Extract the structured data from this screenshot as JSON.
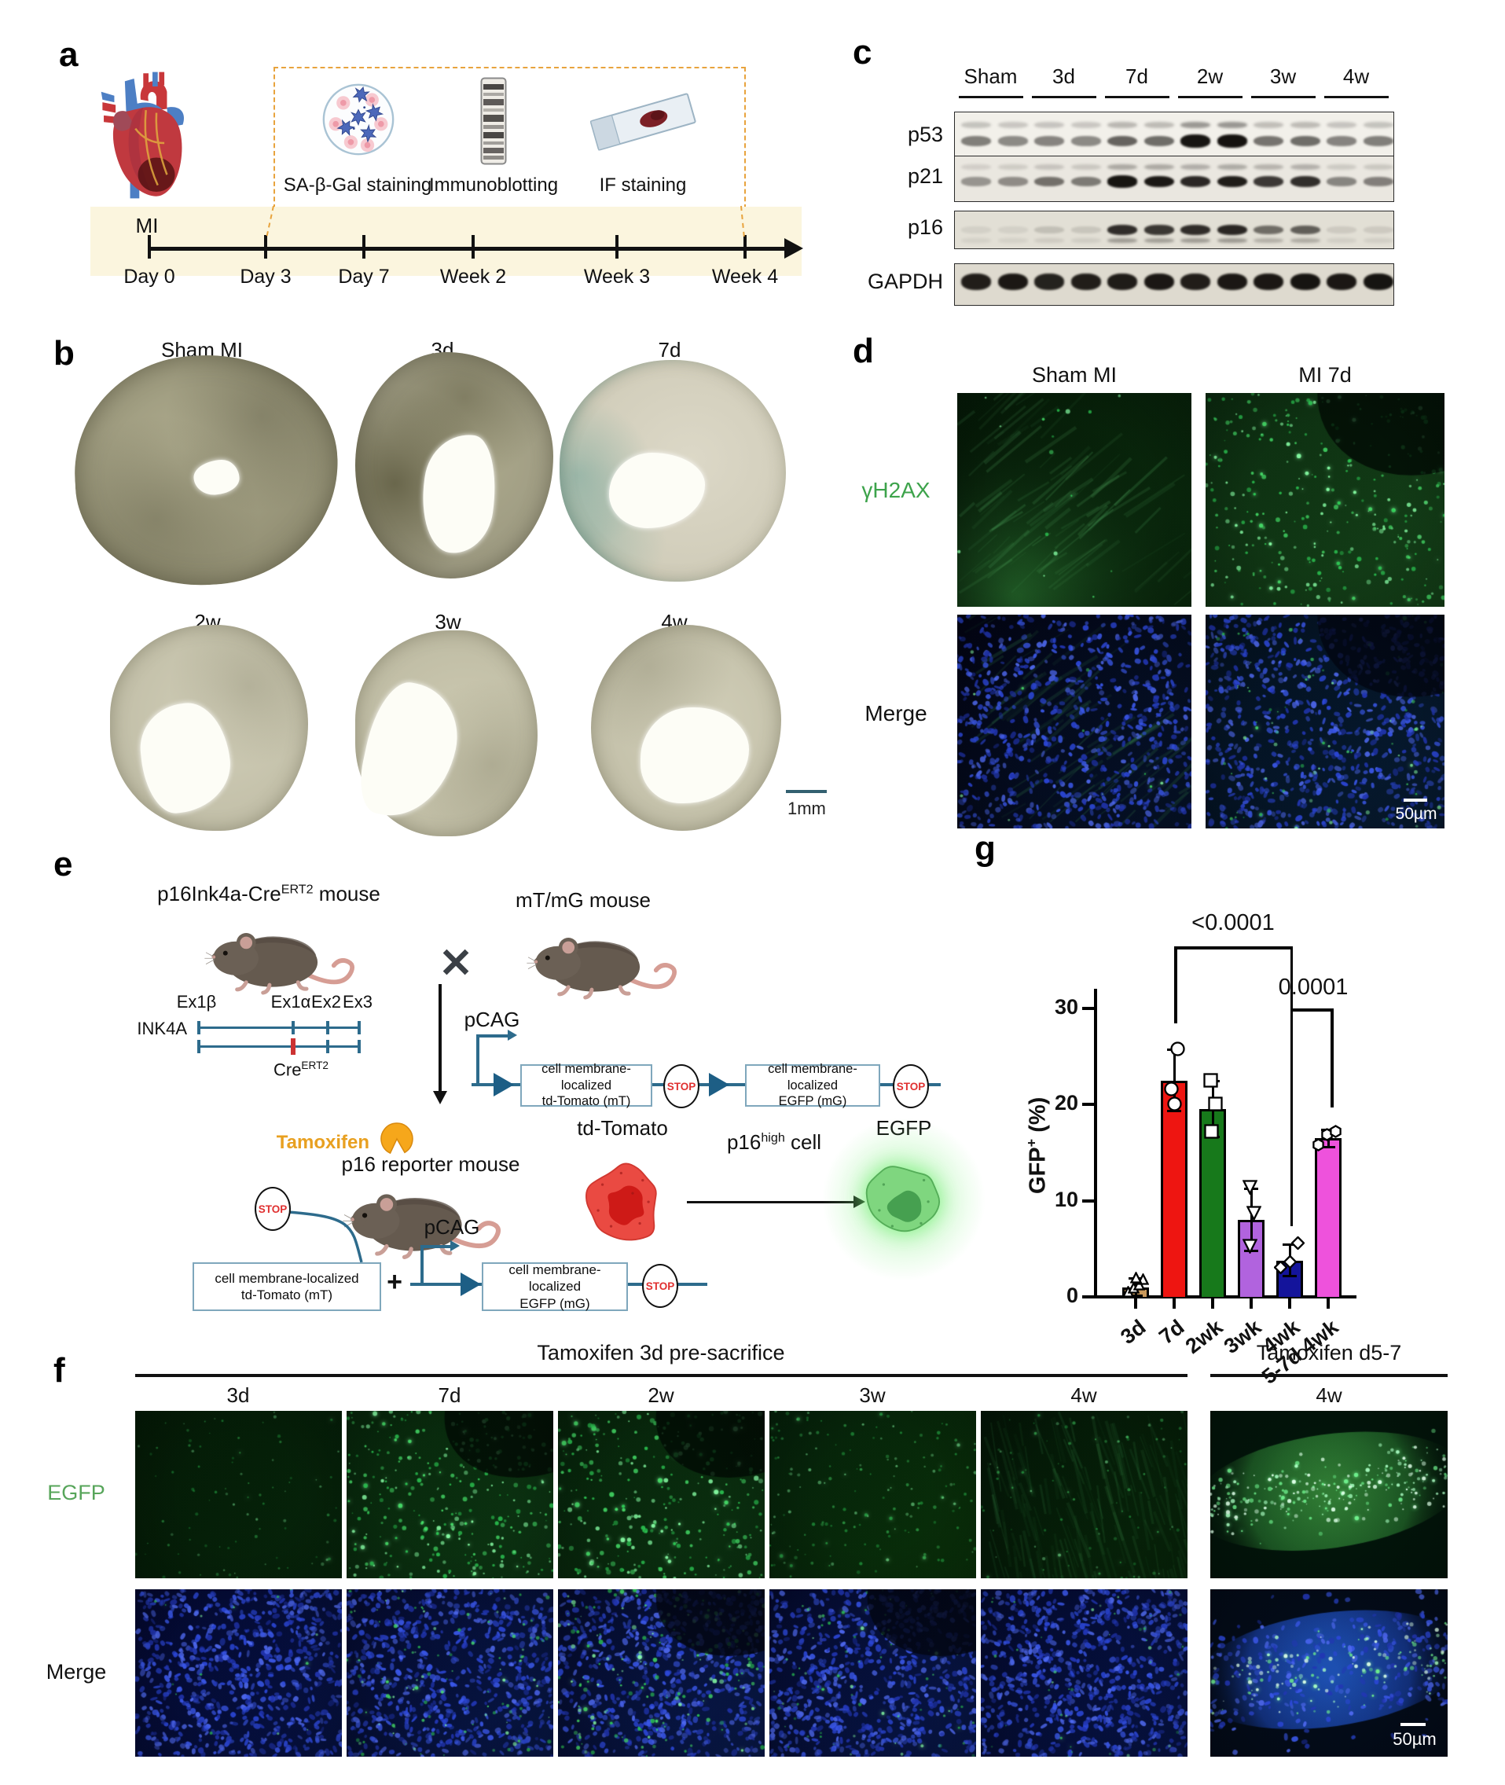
{
  "panels": {
    "a": {
      "letter": "a",
      "mi_label": "MI",
      "timeline_ticks": [
        "Day 0",
        "Day 3",
        "Day 7",
        "Week 2",
        "Week 3",
        "Week 4"
      ],
      "methods": [
        {
          "label": "SA-β-Gal staining",
          "icon": "sa-b-gal-dish-icon"
        },
        {
          "label": "Immunoblotting",
          "icon": "immunoblot-gel-icon"
        },
        {
          "label": "IF staining",
          "icon": "if-slide-icon"
        }
      ]
    },
    "b": {
      "letter": "b",
      "top_labels": [
        "Sham MI",
        "3d",
        "7d"
      ],
      "bottom_labels": [
        "2w",
        "3w",
        "4w"
      ],
      "scale_bar": "1mm"
    },
    "c": {
      "letter": "c",
      "group_labels": [
        "Sham",
        "3d",
        "7d",
        "2w",
        "3w",
        "4w"
      ],
      "rows": [
        {
          "name": "p53",
          "band_intensities": [
            0.5,
            0.45,
            0.48,
            0.45,
            0.62,
            0.58,
            0.97,
            0.98,
            0.55,
            0.58,
            0.48,
            0.5
          ]
        },
        {
          "name": "p21",
          "band_intensities": [
            0.38,
            0.42,
            0.55,
            0.5,
            0.97,
            0.95,
            0.88,
            0.93,
            0.8,
            0.85,
            0.45,
            0.48
          ]
        },
        {
          "name": "p16",
          "band_intensities": [
            0.07,
            0.07,
            0.15,
            0.12,
            0.85,
            0.8,
            0.85,
            0.88,
            0.55,
            0.62,
            0.1,
            0.1
          ]
        },
        {
          "name": "GAPDH",
          "band_intensities": [
            0.92,
            0.95,
            0.9,
            0.92,
            0.93,
            0.95,
            0.92,
            0.95,
            0.95,
            0.97,
            0.95,
            0.97
          ]
        }
      ]
    },
    "d": {
      "letter": "d",
      "col_labels": [
        "Sham MI",
        "MI 7d"
      ],
      "row_labels": [
        {
          "text": "γH2AX",
          "color": "#3DA34B"
        },
        {
          "text": "Merge",
          "color": "#111111"
        }
      ],
      "scale_bar": "50µm"
    },
    "e": {
      "letter": "e",
      "left_mouse_title": {
        "base": "p16Ink4a-Cre",
        "sup": "ERT2",
        "rest": " mouse"
      },
      "right_mouse_title": "mT/mG mouse",
      "exon_labels": [
        "Ex1β",
        "Ex1α",
        "Ex2",
        "Ex3"
      ],
      "gene_label": "INK4A",
      "cre_label": {
        "base": "Cre",
        "sup": "ERT2"
      },
      "cross": "✕",
      "tamoxifen_label": "Tamoxifen",
      "reporter_title": "p16 reporter mouse",
      "pcag_label": "pCAG",
      "box_mt_line1": "cell membrane-localized",
      "box_mt_line2": "td-Tomato (mT)",
      "box_mg_line1": "cell membrane-localized",
      "box_mg_line2": "EGFP (mG)",
      "stop_label": "STOP",
      "plus": "+",
      "tdtomato_label": "td-Tomato",
      "p16high": {
        "base": "p16",
        "sup": "high",
        "rest": " cell"
      },
      "egfp_label": "EGFP"
    },
    "f": {
      "letter": "f",
      "group_headers": [
        "Tamoxifen 3d pre-sacrifice",
        "Tamoxifen d5-7"
      ],
      "col_labels": [
        "3d",
        "7d",
        "2w",
        "3w",
        "4w",
        "4w"
      ],
      "row_labels": [
        {
          "text": "EGFP",
          "color": "#57A55A"
        },
        {
          "text": "Merge",
          "color": "#111111"
        }
      ],
      "scale_bar": "50µm"
    },
    "g": {
      "letter": "g"
    }
  },
  "chart_data": {
    "type": "bar",
    "title": "",
    "ylabel": {
      "base": "GFP",
      "sup": "+",
      "rest": " (%)"
    },
    "ylim": [
      0,
      30
    ],
    "yticks": [
      0,
      10,
      20,
      30
    ],
    "categories": [
      "3d",
      "7d",
      "2wk",
      "3wk",
      "4wk",
      "5-7d 4wk"
    ],
    "values": [
      1.0,
      22.5,
      19.5,
      8.0,
      3.8,
      16.5
    ],
    "errors": [
      0.9,
      3.2,
      2.9,
      3.2,
      1.6,
      0.9
    ],
    "bar_colors": [
      "#C9995B",
      "#EE1511",
      "#17791B",
      "#B163DE",
      "#14149B",
      "#EE52DC"
    ],
    "point_shapes": [
      "triangle-up",
      "circle",
      "square",
      "triangle-down",
      "diamond",
      "hexagon"
    ],
    "points": [
      [
        0.5,
        0.9,
        1.3,
        1.8,
        2.0
      ],
      [
        20.1,
        21.6,
        25.8
      ],
      [
        17.2,
        20.1,
        22.5
      ],
      [
        5.3,
        8.7,
        11.4
      ],
      [
        3.1,
        3.6,
        5.6
      ],
      [
        15.8,
        16.9,
        17.2
      ]
    ],
    "significance": [
      {
        "label": "<0.0001",
        "from": "7d",
        "to": "4wk"
      },
      {
        "label": "0.0001",
        "from": "4wk",
        "to": "5-7d 4wk"
      }
    ],
    "grid": false,
    "legend": null
  },
  "colors": {
    "dashed_box_orange": "#E8A33D",
    "timeline_band": "#FBF5DE",
    "diagram_teal": "#2D6B8C",
    "stop_red": "#E03030",
    "tamoxifen_orange": "#F2A71B",
    "gamma_h2ax_green": "#3DA34B",
    "egfp_label_green": "#57A55A",
    "scale_bar_teal": "#336070"
  }
}
